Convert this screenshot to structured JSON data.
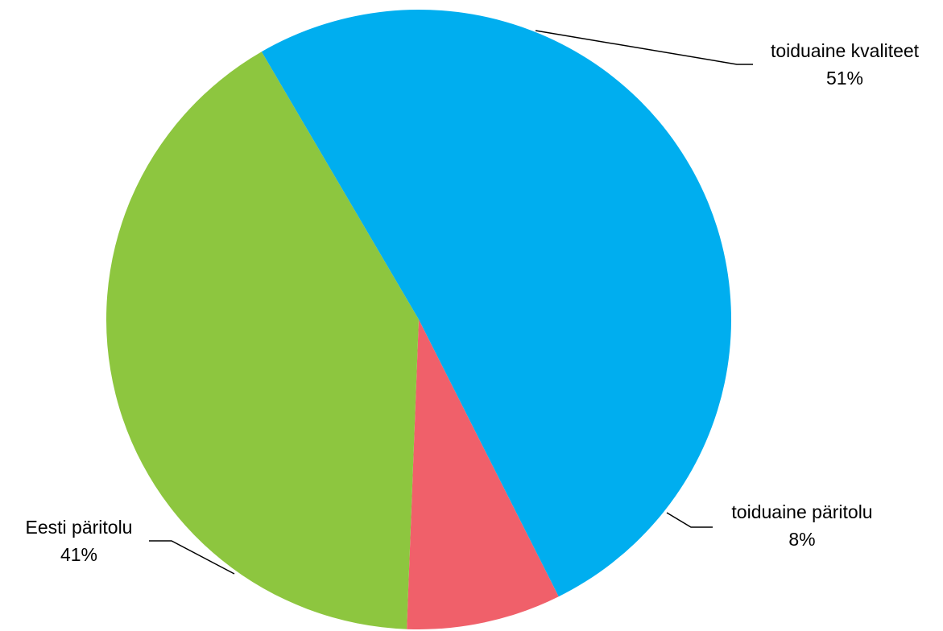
{
  "chart_data": {
    "type": "pie",
    "slices": [
      {
        "label": "toiduaine kvaliteet",
        "value": 51,
        "value_label": "51%",
        "color": "#00AEEF"
      },
      {
        "label": "toiduaine päritolu",
        "value": 8,
        "value_label": "8%",
        "color": "#F0606A"
      },
      {
        "label": "Eesti päritolu",
        "value": 41,
        "value_label": "41%",
        "color": "#8DC63F"
      }
    ],
    "labels_with_leader_lines": true
  }
}
